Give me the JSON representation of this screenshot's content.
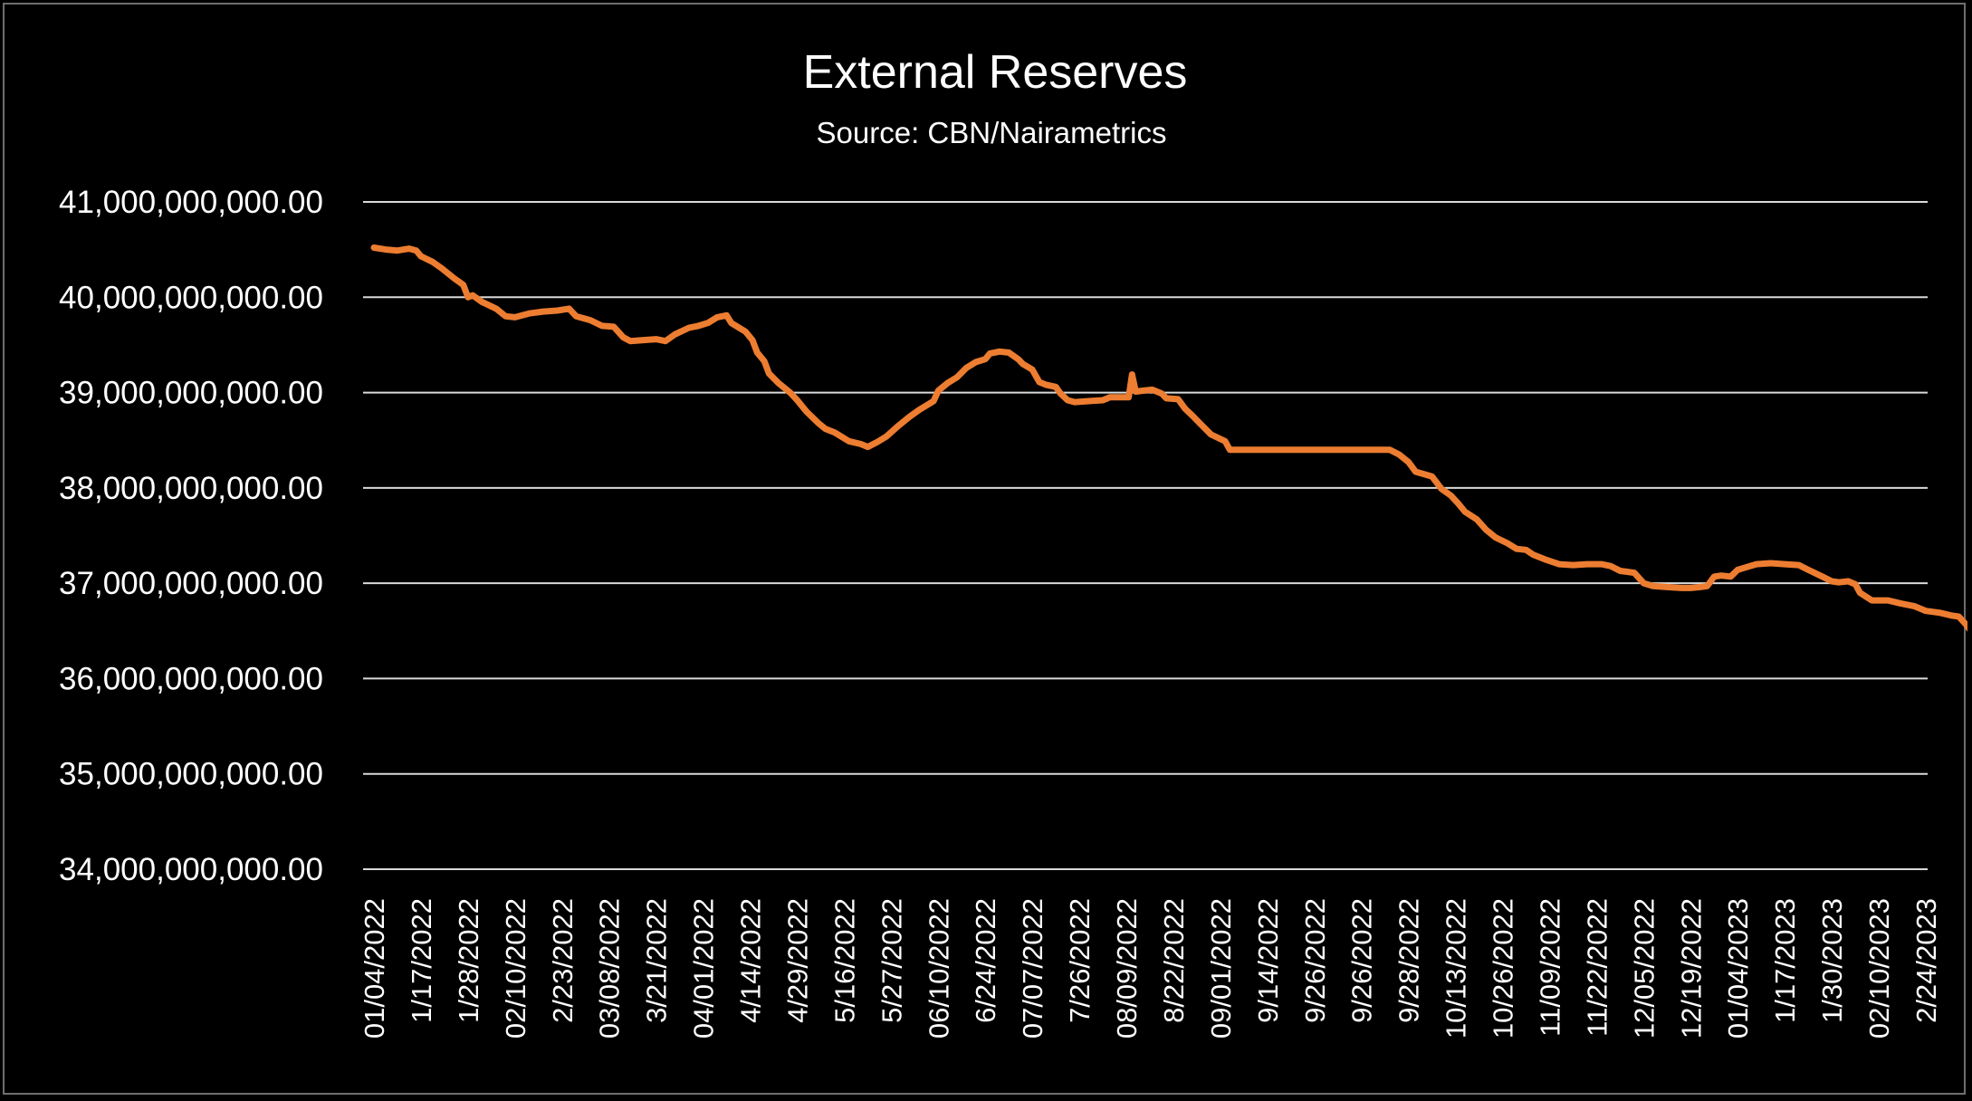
{
  "chart_data": {
    "type": "line",
    "title": "External Reserves",
    "subtitle": "Source: CBN/Nairametrics",
    "xlabel": "",
    "ylabel": "",
    "ylim": [
      34000000000,
      41000000000
    ],
    "yticks": [
      34000000000,
      35000000000,
      36000000000,
      37000000000,
      38000000000,
      39000000000,
      40000000000,
      41000000000
    ],
    "ytick_labels": [
      "34,000,000,000.00",
      "35,000,000,000.00",
      "36,000,000,000.00",
      "37,000,000,000.00",
      "38,000,000,000.00",
      "39,000,000,000.00",
      "40,000,000,000.00",
      "41,000,000,000.00"
    ],
    "xtick_labels": [
      "01/04/2022",
      "1/17/2022",
      "1/28/2022",
      "02/10/2022",
      "2/23/2022",
      "03/08/2022",
      "3/21/2022",
      "04/01/2022",
      "4/14/2022",
      "4/29/2022",
      "5/16/2022",
      "5/27/2022",
      "06/10/2022",
      "6/24/2022",
      "07/07/2022",
      "7/26/2022",
      "08/09/2022",
      "8/22/2022",
      "09/01/2022",
      "9/14/2022",
      "9/26/2022",
      "9/26/2022",
      "9/28/2022",
      "10/13/2022",
      "10/26/2022",
      "11/09/2022",
      "11/22/2022",
      "12/05/2022",
      "12/19/2022",
      "01/04/2023",
      "1/17/2023",
      "1/30/2023",
      "02/10/2023",
      "2/24/2023"
    ],
    "grid": true,
    "legend": "none",
    "series": [
      {
        "name": "External Reserves",
        "color": "#ed7d31",
        "points": [
          [
            0,
            40520000000
          ],
          [
            0.25,
            40500000000
          ],
          [
            0.5,
            40490000000
          ],
          [
            0.75,
            40510000000
          ],
          [
            0.9,
            40490000000
          ],
          [
            1.0,
            40430000000
          ],
          [
            1.25,
            40370000000
          ],
          [
            1.45,
            40300000000
          ],
          [
            1.7,
            40200000000
          ],
          [
            1.9,
            40130000000
          ],
          [
            2.0,
            40000000000
          ],
          [
            2.1,
            40020000000
          ],
          [
            2.3,
            39950000000
          ],
          [
            2.6,
            39880000000
          ],
          [
            2.8,
            39800000000
          ],
          [
            3.0,
            39790000000
          ],
          [
            3.3,
            39830000000
          ],
          [
            3.6,
            39850000000
          ],
          [
            3.9,
            39860000000
          ],
          [
            4.15,
            39880000000
          ],
          [
            4.3,
            39800000000
          ],
          [
            4.6,
            39760000000
          ],
          [
            4.85,
            39700000000
          ],
          [
            5.1,
            39690000000
          ],
          [
            5.3,
            39580000000
          ],
          [
            5.45,
            39540000000
          ],
          [
            5.7,
            39550000000
          ],
          [
            6.0,
            39560000000
          ],
          [
            6.2,
            39540000000
          ],
          [
            6.4,
            39610000000
          ],
          [
            6.7,
            39680000000
          ],
          [
            6.9,
            39700000000
          ],
          [
            7.1,
            39730000000
          ],
          [
            7.3,
            39790000000
          ],
          [
            7.5,
            39810000000
          ],
          [
            7.6,
            39730000000
          ],
          [
            7.9,
            39640000000
          ],
          [
            8.05,
            39550000000
          ],
          [
            8.15,
            39420000000
          ],
          [
            8.3,
            39330000000
          ],
          [
            8.4,
            39200000000
          ],
          [
            8.6,
            39100000000
          ],
          [
            8.85,
            39000000000
          ],
          [
            9.0,
            38920000000
          ],
          [
            9.2,
            38800000000
          ],
          [
            9.45,
            38680000000
          ],
          [
            9.6,
            38620000000
          ],
          [
            9.8,
            38580000000
          ],
          [
            10.0,
            38520000000
          ],
          [
            10.1,
            38490000000
          ],
          [
            10.35,
            38460000000
          ],
          [
            10.5,
            38430000000
          ],
          [
            10.7,
            38480000000
          ],
          [
            10.9,
            38540000000
          ],
          [
            11.15,
            38650000000
          ],
          [
            11.4,
            38750000000
          ],
          [
            11.6,
            38820000000
          ],
          [
            11.9,
            38910000000
          ],
          [
            12.0,
            39020000000
          ],
          [
            12.2,
            39100000000
          ],
          [
            12.4,
            39160000000
          ],
          [
            12.6,
            39260000000
          ],
          [
            12.8,
            39320000000
          ],
          [
            13.0,
            39350000000
          ],
          [
            13.1,
            39410000000
          ],
          [
            13.3,
            39430000000
          ],
          [
            13.5,
            39420000000
          ],
          [
            13.7,
            39350000000
          ],
          [
            13.8,
            39300000000
          ],
          [
            14.0,
            39240000000
          ],
          [
            14.15,
            39110000000
          ],
          [
            14.3,
            39080000000
          ],
          [
            14.5,
            39060000000
          ],
          [
            14.6,
            38990000000
          ],
          [
            14.75,
            38920000000
          ],
          [
            14.9,
            38900000000
          ],
          [
            15.2,
            38910000000
          ],
          [
            15.5,
            38920000000
          ],
          [
            15.65,
            38950000000
          ],
          [
            15.9,
            38950000000
          ],
          [
            16.05,
            38950000000
          ],
          [
            16.12,
            39190000000
          ],
          [
            16.2,
            39010000000
          ],
          [
            16.35,
            39020000000
          ],
          [
            16.55,
            39030000000
          ],
          [
            16.75,
            38990000000
          ],
          [
            16.85,
            38940000000
          ],
          [
            17.1,
            38930000000
          ],
          [
            17.25,
            38830000000
          ],
          [
            17.4,
            38760000000
          ],
          [
            17.6,
            38660000000
          ],
          [
            17.8,
            38560000000
          ],
          [
            18.1,
            38490000000
          ],
          [
            18.2,
            38400000000
          ],
          [
            18.6,
            38400000000
          ],
          [
            19.0,
            38400000000
          ],
          [
            19.5,
            38400000000
          ],
          [
            20.0,
            38400000000
          ],
          [
            20.5,
            38400000000
          ],
          [
            21.0,
            38400000000
          ],
          [
            21.6,
            38400000000
          ],
          [
            21.8,
            38350000000
          ],
          [
            22.0,
            38270000000
          ],
          [
            22.15,
            38170000000
          ],
          [
            22.5,
            38120000000
          ],
          [
            22.7,
            37990000000
          ],
          [
            22.9,
            37920000000
          ],
          [
            23.05,
            37840000000
          ],
          [
            23.2,
            37750000000
          ],
          [
            23.45,
            37670000000
          ],
          [
            23.65,
            37560000000
          ],
          [
            23.85,
            37480000000
          ],
          [
            24.1,
            37420000000
          ],
          [
            24.3,
            37360000000
          ],
          [
            24.5,
            37350000000
          ],
          [
            24.65,
            37300000000
          ],
          [
            24.9,
            37250000000
          ],
          [
            25.2,
            37200000000
          ],
          [
            25.5,
            37190000000
          ],
          [
            25.8,
            37200000000
          ],
          [
            26.1,
            37200000000
          ],
          [
            26.3,
            37180000000
          ],
          [
            26.5,
            37130000000
          ],
          [
            26.8,
            37110000000
          ],
          [
            27.0,
            37000000000
          ],
          [
            27.2,
            36970000000
          ],
          [
            27.5,
            36960000000
          ],
          [
            27.8,
            36950000000
          ],
          [
            28.0,
            36950000000
          ],
          [
            28.2,
            36960000000
          ],
          [
            28.35,
            36970000000
          ],
          [
            28.5,
            37070000000
          ],
          [
            28.65,
            37080000000
          ],
          [
            28.85,
            37070000000
          ],
          [
            29.0,
            37140000000
          ],
          [
            29.2,
            37170000000
          ],
          [
            29.4,
            37200000000
          ],
          [
            29.7,
            37210000000
          ],
          [
            30.0,
            37200000000
          ],
          [
            30.3,
            37190000000
          ],
          [
            30.5,
            37140000000
          ],
          [
            30.8,
            37070000000
          ],
          [
            31.0,
            37020000000
          ],
          [
            31.15,
            37010000000
          ],
          [
            31.35,
            37020000000
          ],
          [
            31.5,
            36990000000
          ],
          [
            31.6,
            36900000000
          ],
          [
            31.85,
            36820000000
          ],
          [
            32.2,
            36820000000
          ],
          [
            32.45,
            36790000000
          ],
          [
            32.75,
            36760000000
          ],
          [
            33.0,
            36710000000
          ],
          [
            33.3,
            36690000000
          ],
          [
            33.55,
            36660000000
          ],
          [
            33.7,
            36650000000
          ],
          [
            33.85,
            36570000000
          ],
          [
            34.0,
            36470000000
          ]
        ]
      }
    ]
  }
}
